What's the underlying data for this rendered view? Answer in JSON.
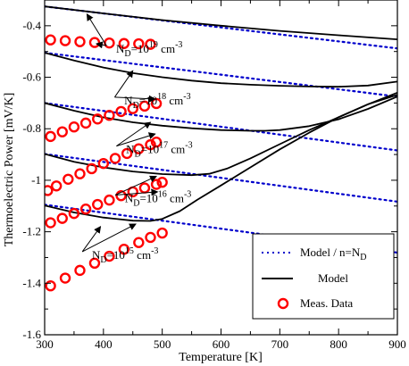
{
  "chart_data": {
    "type": "line",
    "xlabel": "Temperature [K]",
    "ylabel": "Thermoelectric Power [mV/K]",
    "xlim": [
      300,
      900
    ],
    "ylim": [
      -1.6,
      -0.3
    ],
    "x_ticks": [
      300,
      400,
      500,
      600,
      700,
      800,
      900
    ],
    "y_ticks": [
      -1.6,
      -1.4,
      -1.2,
      -1.0,
      -0.8,
      -0.6,
      -0.4
    ],
    "x_tick_labels": [
      "300",
      "400",
      "500",
      "600",
      "700",
      "800",
      "900"
    ],
    "y_tick_labels": [
      "-1.6",
      "-1.4",
      "-1.2",
      "-1",
      "-0.8",
      "-0.6",
      "-0.4"
    ],
    "legend": {
      "placement": "bottom-right",
      "entries": [
        {
          "label_base": "Model / n=N",
          "label_sub": "D",
          "style": "dotted-line",
          "color": "#0000cc"
        },
        {
          "label_base": "Model",
          "label_sub": "",
          "style": "solid-line",
          "color": "#000000"
        },
        {
          "label_base": "Meas. Data",
          "label_sub": "",
          "style": "circle-marker",
          "color": "#ff0000"
        }
      ]
    },
    "annotations": [
      {
        "base": "N",
        "sub": "D",
        "mid": "=10",
        "sup1": "19",
        "unit": " cm",
        "sup2": "-3",
        "text_x": 478,
        "text_y": -0.505,
        "arrows": [
          [
            372,
            -0.355
          ],
          [
            388,
            -0.47
          ]
        ]
      },
      {
        "base": "N",
        "sub": "D",
        "mid": "=10",
        "sup1": "18",
        "unit": " cm",
        "sup2": "-3",
        "text_x": 492,
        "text_y": -0.705,
        "arrows": [
          [
            450,
            -0.575
          ],
          [
            488,
            -0.685
          ]
        ]
      },
      {
        "base": "N",
        "sub": "D",
        "mid": "=10",
        "sup1": "17",
        "unit": " cm",
        "sup2": "-3",
        "text_x": 495,
        "text_y": -0.895,
        "arrows": [
          [
            480,
            -0.775
          ],
          [
            488,
            -0.82
          ]
        ]
      },
      {
        "base": "N",
        "sub": "D",
        "mid": "=10",
        "sup1": "16",
        "unit": " cm",
        "sup2": "-3",
        "text_x": 493,
        "text_y": -1.085,
        "arrows": [
          [
            490,
            -0.985
          ],
          [
            492,
            -1.045
          ]
        ]
      },
      {
        "base": "N",
        "sub": "D",
        "mid": "=10",
        "sup1": "15",
        "unit": " cm",
        "sup2": "-3",
        "text_x": 437,
        "text_y": -1.305,
        "arrows": [
          [
            395,
            -1.18
          ],
          [
            455,
            -1.17
          ]
        ]
      }
    ],
    "series": [
      {
        "kind": "model",
        "nd": "1e19",
        "x": [
          300,
          400,
          500,
          600,
          700,
          800,
          900
        ],
        "y": [
          -0.325,
          -0.352,
          -0.378,
          -0.4,
          -0.42,
          -0.437,
          -0.453
        ]
      },
      {
        "kind": "model",
        "nd": "1e18",
        "x": [
          300,
          350,
          400,
          450,
          500,
          550,
          600,
          650,
          700,
          750,
          800,
          850,
          900
        ],
        "y": [
          -0.505,
          -0.535,
          -0.562,
          -0.584,
          -0.6,
          -0.613,
          -0.623,
          -0.629,
          -0.633,
          -0.636,
          -0.637,
          -0.632,
          -0.617
        ]
      },
      {
        "kind": "model",
        "nd": "1e17",
        "x": [
          300,
          350,
          400,
          450,
          500,
          550,
          600,
          650,
          675,
          700,
          750,
          800,
          850,
          900
        ],
        "y": [
          -0.7,
          -0.73,
          -0.756,
          -0.775,
          -0.788,
          -0.798,
          -0.805,
          -0.808,
          -0.808,
          -0.805,
          -0.79,
          -0.763,
          -0.723,
          -0.675
        ]
      },
      {
        "kind": "model",
        "nd": "1e16",
        "x": [
          300,
          350,
          400,
          450,
          500,
          550,
          580,
          610,
          650,
          700,
          750,
          800,
          850,
          900
        ],
        "y": [
          -0.898,
          -0.928,
          -0.95,
          -0.966,
          -0.976,
          -0.98,
          -0.975,
          -0.955,
          -0.915,
          -0.86,
          -0.805,
          -0.755,
          -0.705,
          -0.668
        ]
      },
      {
        "kind": "model",
        "nd": "1e15",
        "x": [
          300,
          350,
          400,
          450,
          480,
          500,
          530,
          560,
          600,
          650,
          700,
          750,
          800,
          850,
          900
        ],
        "y": [
          -1.098,
          -1.125,
          -1.145,
          -1.157,
          -1.158,
          -1.15,
          -1.12,
          -1.075,
          -1.02,
          -0.95,
          -0.88,
          -0.815,
          -0.755,
          -0.705,
          -0.66
        ]
      },
      {
        "kind": "approx",
        "nd": "1e19",
        "x": [
          300,
          900
        ],
        "y": [
          -0.325,
          -0.488
        ]
      },
      {
        "kind": "approx",
        "nd": "1e18",
        "x": [
          300,
          900
        ],
        "y": [
          -0.505,
          -0.675
        ]
      },
      {
        "kind": "approx",
        "nd": "1e17",
        "x": [
          300,
          900
        ],
        "y": [
          -0.7,
          -0.884
        ]
      },
      {
        "kind": "approx",
        "nd": "1e16",
        "x": [
          300,
          900
        ],
        "y": [
          -0.898,
          -1.083
        ]
      },
      {
        "kind": "approx",
        "nd": "1e15",
        "x": [
          300,
          900
        ],
        "y": [
          -1.095,
          -1.281
        ]
      },
      {
        "kind": "meas",
        "nd": "1e19",
        "x": [
          310,
          335,
          360,
          385,
          410,
          435,
          460,
          480
        ],
        "y": [
          -0.455,
          -0.458,
          -0.462,
          -0.465,
          -0.467,
          -0.469,
          -0.47,
          -0.472
        ]
      },
      {
        "kind": "meas",
        "nd": "1e18",
        "x": [
          310,
          330,
          350,
          370,
          390,
          410,
          430,
          450,
          470,
          490
        ],
        "y": [
          -0.83,
          -0.812,
          -0.793,
          -0.778,
          -0.762,
          -0.748,
          -0.733,
          -0.722,
          -0.712,
          -0.702
        ]
      },
      {
        "kind": "meas",
        "nd": "1e17",
        "x": [
          305,
          320,
          340,
          360,
          380,
          400,
          420,
          440,
          460,
          480,
          490
        ],
        "y": [
          -1.04,
          -1.022,
          -0.996,
          -0.975,
          -0.955,
          -0.935,
          -0.915,
          -0.896,
          -0.878,
          -0.862,
          -0.852
        ]
      },
      {
        "kind": "meas",
        "nd": "1e16",
        "x": [
          310,
          330,
          350,
          370,
          390,
          410,
          430,
          450,
          470,
          490,
          500
        ],
        "y": [
          -1.165,
          -1.148,
          -1.129,
          -1.112,
          -1.094,
          -1.077,
          -1.06,
          -1.045,
          -1.03,
          -1.016,
          -1.008
        ]
      },
      {
        "kind": "meas",
        "nd": "1e15",
        "x": [
          310,
          335,
          360,
          385,
          410,
          435,
          460,
          480,
          500
        ],
        "y": [
          -1.41,
          -1.38,
          -1.35,
          -1.322,
          -1.295,
          -1.268,
          -1.242,
          -1.222,
          -1.205
        ]
      }
    ]
  }
}
